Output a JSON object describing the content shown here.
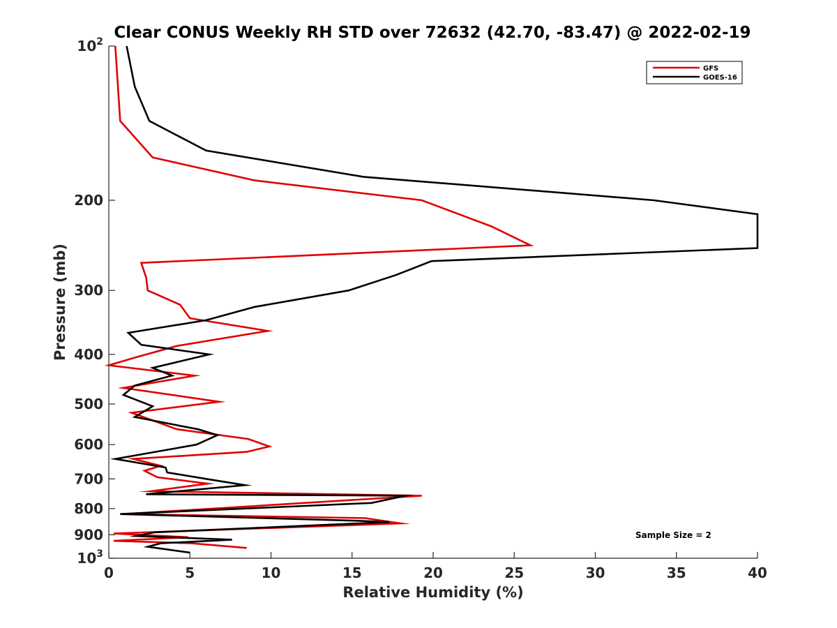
{
  "chart_data": {
    "type": "line",
    "title": "Clear CONUS Weekly RH STD over 72632 (42.70, -83.47) @ 2022-02-19",
    "xlabel": "Relative Humidity (%)",
    "ylabel": "Pressure (mb)",
    "xlim": [
      0,
      40
    ],
    "ylim": [
      100,
      1000
    ],
    "y_scale": "log",
    "y_direction": "reversed",
    "grid": false,
    "legend_position": "top-right",
    "x_ticks": [
      0,
      5,
      10,
      15,
      20,
      25,
      30,
      35,
      40
    ],
    "y_ticks": [
      {
        "value": 100,
        "base": "10",
        "exp": "2"
      },
      {
        "value": 200,
        "label": "200"
      },
      {
        "value": 300,
        "label": "300"
      },
      {
        "value": 400,
        "label": "400"
      },
      {
        "value": 500,
        "label": "500"
      },
      {
        "value": 600,
        "label": "600"
      },
      {
        "value": 700,
        "label": "700"
      },
      {
        "value": 800,
        "label": "800"
      },
      {
        "value": 900,
        "label": "900"
      },
      {
        "value": 1000,
        "base": "10",
        "exp": "3"
      }
    ],
    "annotation": "Sample Size = 2",
    "series": [
      {
        "name": "GFS",
        "color": "#e00000",
        "points": [
          [
            0.4,
            100
          ],
          [
            0.7,
            140
          ],
          [
            2.7,
            165
          ],
          [
            9.0,
            183
          ],
          [
            19.3,
            200
          ],
          [
            23.6,
            225
          ],
          [
            26.0,
            245
          ],
          [
            2.0,
            265
          ],
          [
            2.3,
            283
          ],
          [
            2.4,
            300
          ],
          [
            4.4,
            320
          ],
          [
            5.0,
            340
          ],
          [
            9.8,
            360
          ],
          [
            4.2,
            385
          ],
          [
            1.7,
            405
          ],
          [
            0.0,
            420
          ],
          [
            5.3,
            440
          ],
          [
            0.9,
            465
          ],
          [
            6.8,
            495
          ],
          [
            1.4,
            520
          ],
          [
            4.2,
            560
          ],
          [
            8.6,
            585
          ],
          [
            9.9,
            605
          ],
          [
            8.5,
            620
          ],
          [
            1.5,
            640
          ],
          [
            3.2,
            660
          ],
          [
            2.2,
            675
          ],
          [
            3.0,
            695
          ],
          [
            6.1,
            715
          ],
          [
            2.6,
            740
          ],
          [
            19.3,
            755
          ],
          [
            7.8,
            795
          ],
          [
            0.9,
            820
          ],
          [
            15.8,
            835
          ],
          [
            18.0,
            855
          ],
          [
            0.3,
            895
          ],
          [
            4.9,
            910
          ],
          [
            0.3,
            925
          ],
          [
            5.1,
            935
          ],
          [
            8.5,
            955
          ]
        ]
      },
      {
        "name": "GOES-16",
        "color": "#000000",
        "points": [
          [
            1.1,
            100
          ],
          [
            1.6,
            120
          ],
          [
            2.5,
            140
          ],
          [
            6.0,
            160
          ],
          [
            15.7,
            180
          ],
          [
            33.6,
            200
          ],
          [
            40.0,
            213
          ],
          [
            40.0,
            248
          ],
          [
            19.9,
            263
          ],
          [
            17.7,
            280
          ],
          [
            14.8,
            300
          ],
          [
            9.0,
            323
          ],
          [
            6.0,
            343
          ],
          [
            1.2,
            363
          ],
          [
            2.0,
            383
          ],
          [
            6.2,
            400
          ],
          [
            2.7,
            425
          ],
          [
            3.9,
            440
          ],
          [
            1.6,
            460
          ],
          [
            0.9,
            480
          ],
          [
            2.7,
            505
          ],
          [
            1.6,
            530
          ],
          [
            5.5,
            560
          ],
          [
            6.7,
            575
          ],
          [
            5.4,
            600
          ],
          [
            3.5,
            615
          ],
          [
            0.4,
            640
          ],
          [
            3.5,
            665
          ],
          [
            3.6,
            680
          ],
          [
            6.0,
            700
          ],
          [
            8.4,
            720
          ],
          [
            2.3,
            750
          ],
          [
            18.3,
            755
          ],
          [
            16.2,
            780
          ],
          [
            0.7,
            820
          ],
          [
            15.3,
            845
          ],
          [
            17.3,
            850
          ],
          [
            2.8,
            890
          ],
          [
            1.7,
            905
          ],
          [
            7.6,
            920
          ],
          [
            3.2,
            935
          ],
          [
            2.4,
            950
          ],
          [
            5.0,
            975
          ]
        ]
      }
    ]
  }
}
